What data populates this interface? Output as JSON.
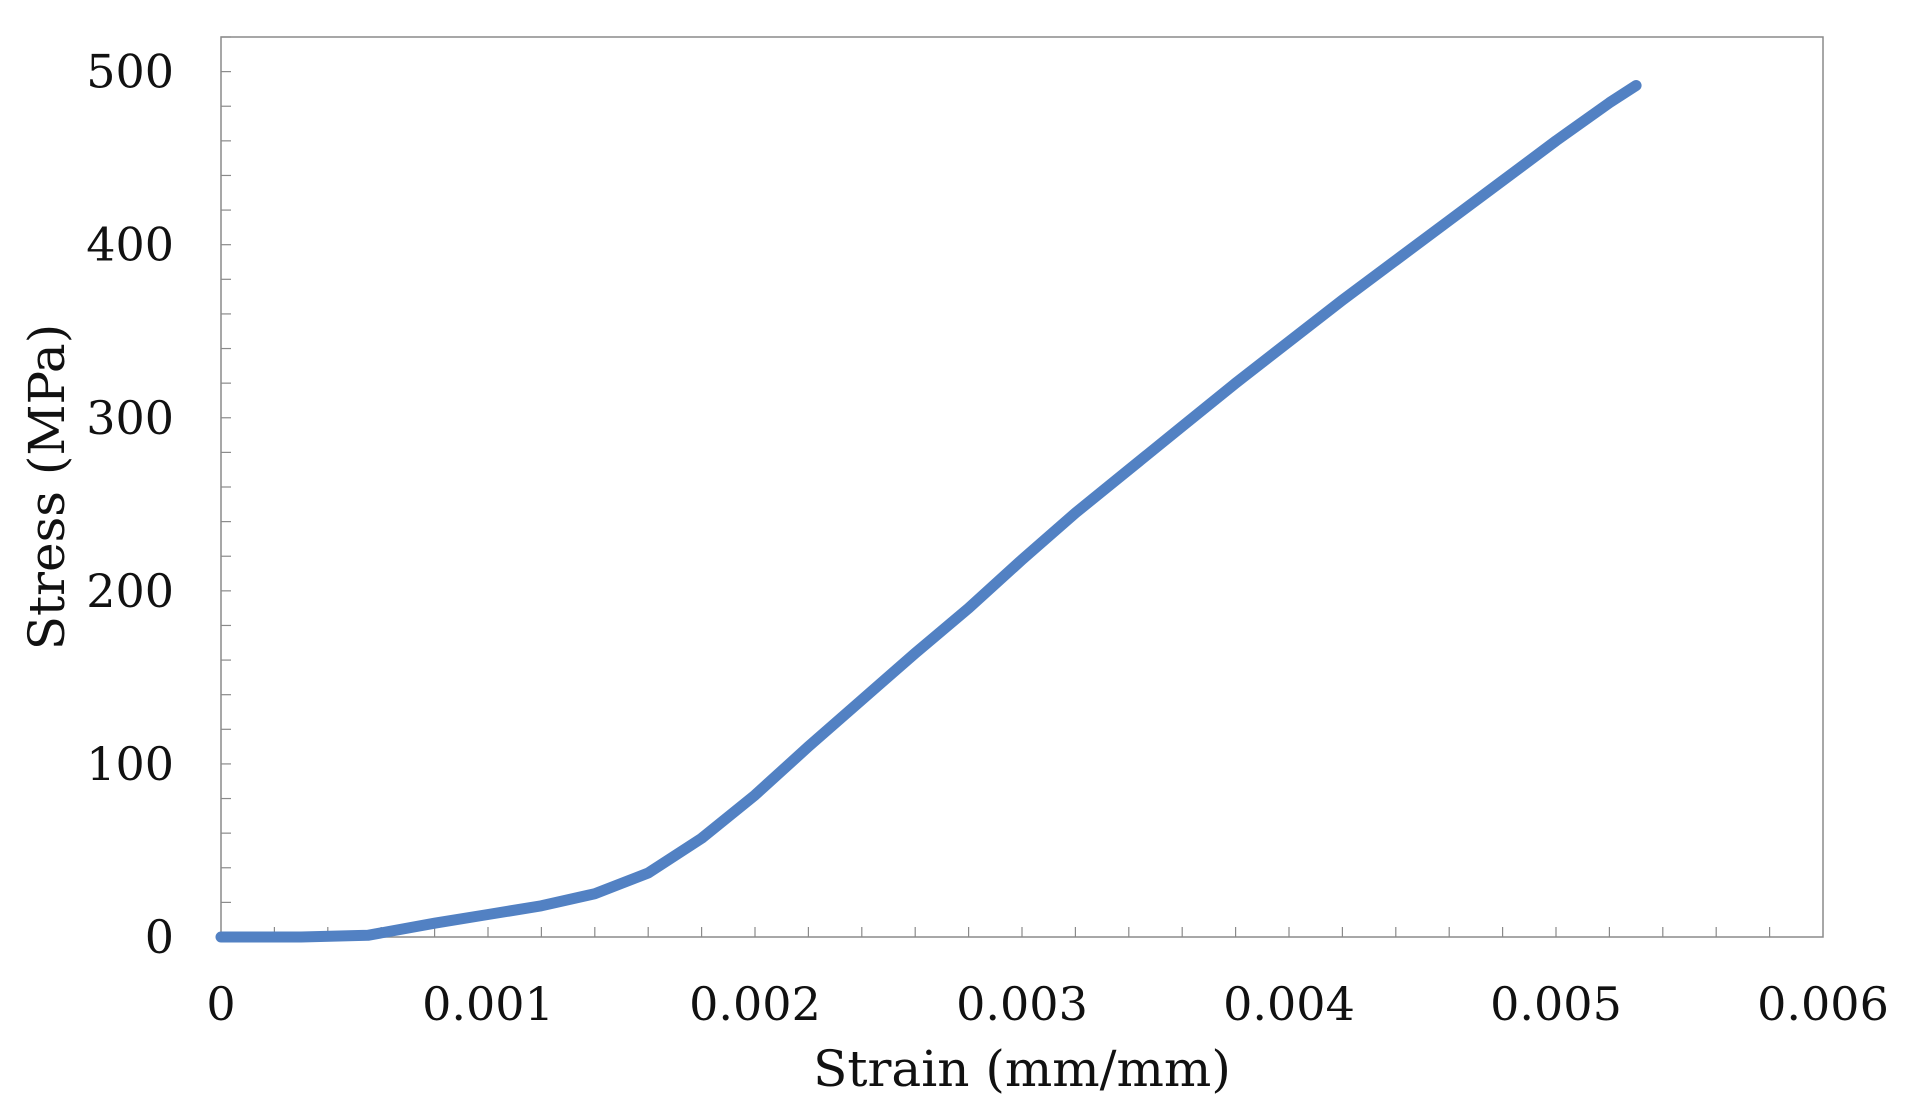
{
  "chart_data": {
    "type": "line",
    "title": "",
    "xlabel": "Strain (mm/mm)",
    "ylabel": "Stress (MPa)",
    "xlim": [
      0,
      0.006
    ],
    "ylim": [
      0,
      520
    ],
    "x_ticks": [
      "0",
      "0.001",
      "0.002",
      "0.003",
      "0.004",
      "0.005",
      "0.006"
    ],
    "y_ticks": [
      "0",
      "100",
      "200",
      "300",
      "400",
      "500"
    ],
    "grid": false,
    "legend": "none",
    "series": [
      {
        "color": "#5281c3",
        "x": [
          0,
          0.0003,
          0.00055,
          0.0008,
          0.001,
          0.0012,
          0.0014,
          0.0016,
          0.0018,
          0.002,
          0.0022,
          0.0024,
          0.0026,
          0.0028,
          0.003,
          0.0032,
          0.0034,
          0.0036,
          0.0038,
          0.004,
          0.0042,
          0.0044,
          0.0046,
          0.0048,
          0.005,
          0.0052,
          0.0053
        ],
        "y": [
          0,
          0,
          1,
          8,
          13,
          18,
          25,
          37,
          57,
          82,
          110,
          137,
          164,
          190,
          218,
          245,
          270,
          295,
          320,
          344,
          368,
          391,
          414,
          437,
          460,
          482,
          492
        ]
      }
    ]
  }
}
